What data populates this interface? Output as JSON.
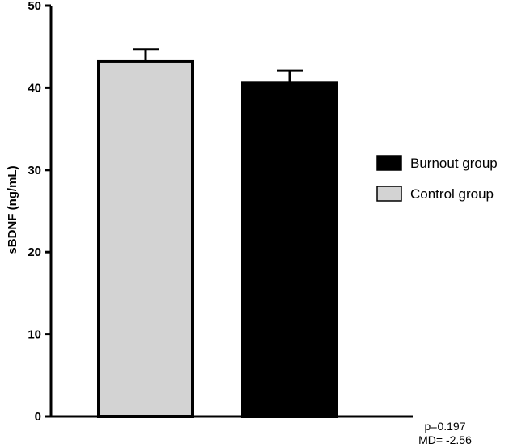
{
  "chart_data": {
    "type": "bar",
    "categories": [
      "Control group",
      "Burnout group"
    ],
    "values": [
      43.2,
      40.6
    ],
    "error": [
      1.5,
      1.5
    ],
    "colors": [
      "#d3d3d3",
      "#000000"
    ],
    "ylabel": "sBDNF (ng/mL)",
    "xlabel": "",
    "ylim": [
      0,
      50
    ],
    "yticks": [
      "0",
      "10",
      "20",
      "30",
      "40",
      "50"
    ],
    "legend": [
      {
        "label": "Burnout group",
        "color": "#000000"
      },
      {
        "label": "Control group",
        "color": "#d3d3d3"
      }
    ],
    "legend_position": "right",
    "grid": false,
    "annotations": [
      "p=0.197",
      "MD= -2.56"
    ]
  }
}
